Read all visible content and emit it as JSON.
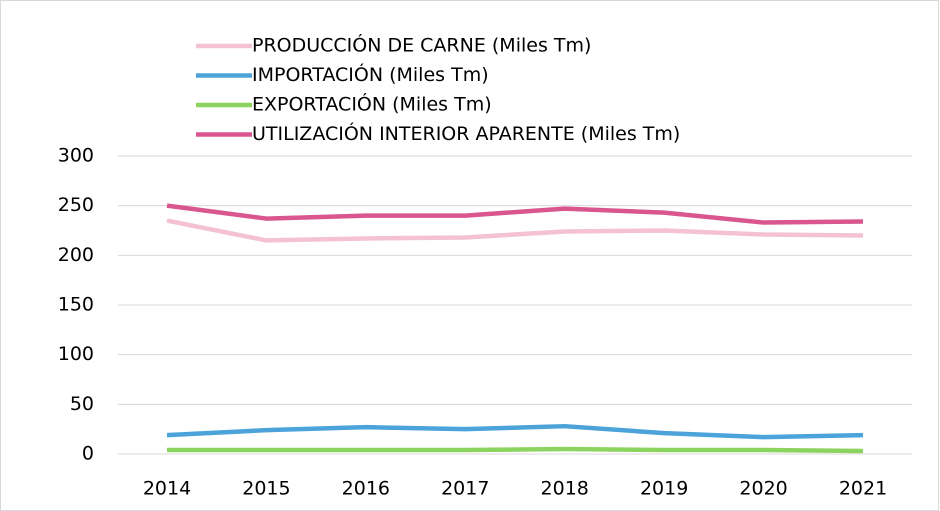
{
  "chart_data": {
    "type": "line",
    "x": [
      "2014",
      "2015",
      "2016",
      "2017",
      "2018",
      "2019",
      "2020",
      "2021"
    ],
    "series": [
      {
        "name": "PRODUCCIÓN DE CARNE (Miles Tm)",
        "color": "#f4c2d4",
        "values": [
          235,
          215,
          217,
          218,
          224,
          225,
          221,
          220
        ]
      },
      {
        "name": "IMPORTACIÓN (Miles Tm)",
        "color": "#4ba3d9",
        "values": [
          19,
          24,
          27,
          25,
          28,
          21,
          17,
          19
        ]
      },
      {
        "name": "EXPORTACIÓN (Miles Tm)",
        "color": "#8dd35f",
        "values": [
          4,
          4,
          4,
          4,
          5,
          4,
          4,
          3
        ]
      },
      {
        "name": "UTILIZACIÓN INTERIOR APARENTE (Miles Tm)",
        "color": "#d9568e",
        "values": [
          250,
          237,
          240,
          240,
          247,
          243,
          233,
          234
        ]
      }
    ],
    "ylim": [
      0,
      300
    ],
    "yticks": [
      0,
      50,
      100,
      150,
      200,
      250,
      300
    ],
    "grid": true
  }
}
